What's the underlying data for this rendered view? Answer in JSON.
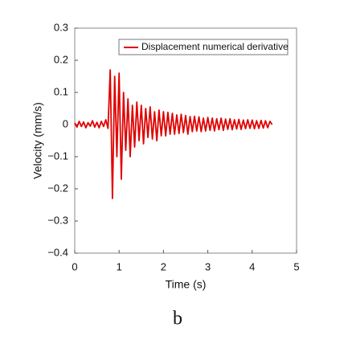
{
  "chart_data": {
    "type": "line",
    "xlabel": "Time (s)",
    "ylabel": "Velocity (mm/s)",
    "caption": "b",
    "x": [
      0,
      0.05,
      0.1,
      0.15,
      0.2,
      0.25,
      0.3,
      0.35,
      0.4,
      0.45,
      0.5,
      0.55,
      0.6,
      0.65,
      0.7,
      0.75,
      0.8,
      0.85,
      0.9,
      0.95,
      1.0,
      1.05,
      1.1,
      1.15,
      1.2,
      1.25,
      1.3,
      1.35,
      1.4,
      1.45,
      1.5,
      1.55,
      1.6,
      1.65,
      1.7,
      1.75,
      1.8,
      1.85,
      1.9,
      1.95,
      2.0,
      2.05,
      2.1,
      2.15,
      2.2,
      2.25,
      2.3,
      2.35,
      2.4,
      2.45,
      2.5,
      2.55,
      2.6,
      2.65,
      2.7,
      2.75,
      2.8,
      2.85,
      2.9,
      2.95,
      3.0,
      3.05,
      3.1,
      3.15,
      3.2,
      3.25,
      3.3,
      3.35,
      3.4,
      3.45,
      3.5,
      3.55,
      3.6,
      3.65,
      3.7,
      3.75,
      3.8,
      3.85,
      3.9,
      3.95,
      4.0,
      4.05,
      4.1,
      4.15,
      4.2,
      4.25,
      4.3,
      4.35,
      4.4,
      4.45
    ],
    "series": [
      {
        "name": "Displacement numerical derivative",
        "color": "#e00000",
        "values": [
          0.005,
          -0.008,
          0.01,
          -0.006,
          0.008,
          -0.01,
          0.006,
          -0.005,
          0.012,
          -0.008,
          0.007,
          -0.01,
          0.01,
          -0.006,
          0.015,
          -0.012,
          0.17,
          -0.23,
          0.15,
          -0.1,
          0.16,
          -0.17,
          0.1,
          -0.08,
          0.08,
          -0.1,
          0.06,
          -0.07,
          0.07,
          -0.05,
          0.06,
          -0.06,
          0.05,
          -0.04,
          0.055,
          -0.045,
          0.04,
          -0.05,
          0.045,
          -0.035,
          0.04,
          -0.035,
          0.038,
          -0.03,
          0.035,
          -0.03,
          0.03,
          -0.028,
          0.032,
          -0.025,
          0.028,
          -0.03,
          0.025,
          -0.022,
          0.026,
          -0.02,
          0.024,
          -0.022,
          0.02,
          -0.02,
          0.022,
          -0.018,
          0.02,
          -0.02,
          0.018,
          -0.016,
          0.02,
          -0.018,
          0.017,
          -0.015,
          0.018,
          -0.016,
          0.015,
          -0.014,
          0.016,
          -0.015,
          0.014,
          -0.013,
          0.015,
          -0.012,
          0.014,
          -0.013,
          0.012,
          -0.012,
          0.013,
          -0.011,
          0.012,
          -0.01,
          0.01,
          0.0
        ]
      }
    ],
    "xlim": [
      0,
      5
    ],
    "xticks": [
      0,
      1,
      2,
      3,
      4,
      5
    ],
    "ylim": [
      -0.4,
      0.3
    ],
    "yticks": [
      {
        "value": -0.4,
        "label": "−0.4"
      },
      {
        "value": -0.3,
        "label": "−0.3"
      },
      {
        "value": -0.2,
        "label": "−0.2"
      },
      {
        "value": -0.1,
        "label": "−0.1"
      },
      0,
      0.1,
      0.2,
      0.3
    ],
    "legend": "upper right"
  }
}
